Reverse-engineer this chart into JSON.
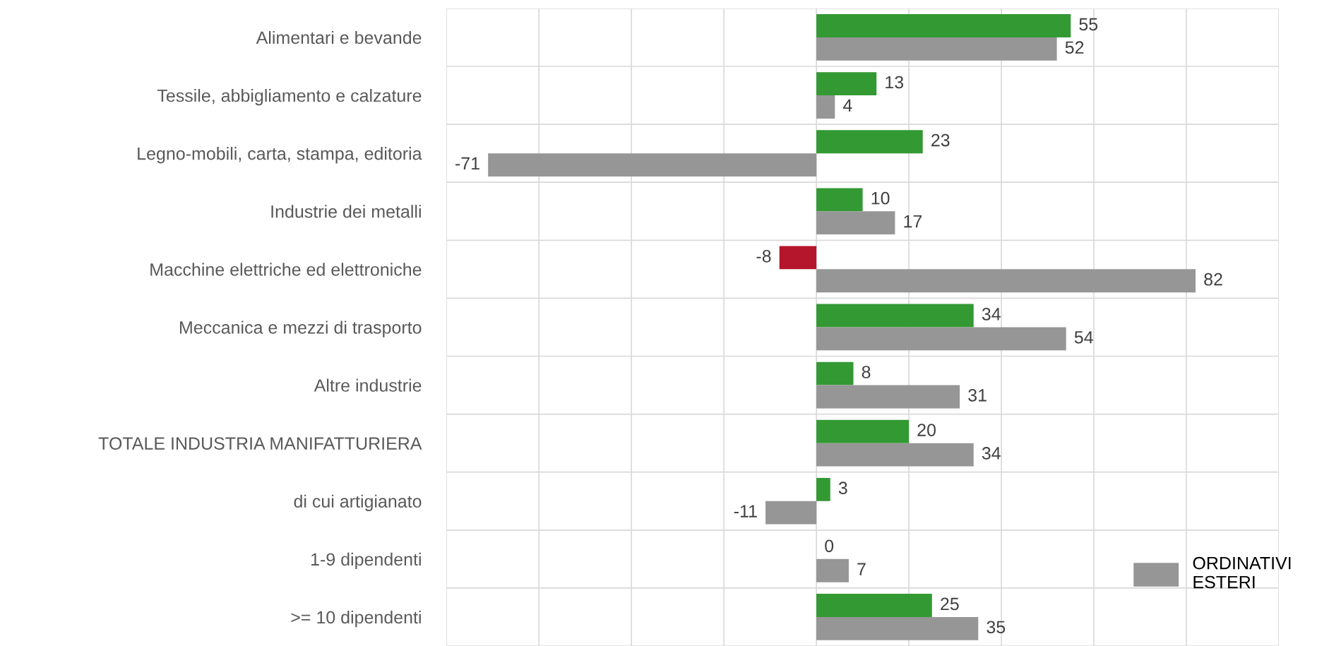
{
  "chart_data": {
    "type": "bar",
    "orientation": "horizontal",
    "categories": [
      "Alimentari e bevande",
      "Tessile, abbigliamento e calzature",
      "Legno-mobili, carta, stampa, editoria",
      "Industrie dei metalli",
      "Macchine elettriche ed elettroniche",
      "Meccanica e mezzi di trasporto",
      "Altre industrie",
      "TOTALE INDUSTRIA MANIFATTURIERA",
      "di cui artigianato",
      "1-9 dipendenti",
      ">= 10 dipendenti"
    ],
    "series": [
      {
        "color": "#339933",
        "colors": [
          "#339933",
          "#339933",
          "#339933",
          "#339933",
          "#b5162b",
          "#339933",
          "#339933",
          "#339933",
          "#339933",
          "#339933",
          "#339933"
        ],
        "values": [
          55,
          13,
          23,
          10,
          -8,
          34,
          8,
          20,
          3,
          0,
          25
        ]
      },
      {
        "name": "ORDINATIVI\nESTERI",
        "color": "#969696",
        "values": [
          52,
          4,
          -71,
          17,
          82,
          54,
          31,
          34,
          -11,
          7,
          35
        ]
      }
    ],
    "xlim": [
      -80,
      100
    ],
    "xticks": [
      {
        "value": -80,
        "label": null
      },
      {
        "value": -60,
        "label": null
      },
      {
        "value": -40,
        "label": null
      },
      {
        "value": -20,
        "label": null
      },
      {
        "value": 0,
        "label": null
      },
      {
        "value": 20,
        "label": null
      },
      {
        "value": 40,
        "label": null
      },
      {
        "value": 60,
        "label": null
      },
      {
        "value": 80,
        "label": null
      },
      {
        "value": 100,
        "label": null
      }
    ],
    "tick_labels": "y",
    "grid": true,
    "data_labels": true,
    "legend": "bottom right"
  }
}
